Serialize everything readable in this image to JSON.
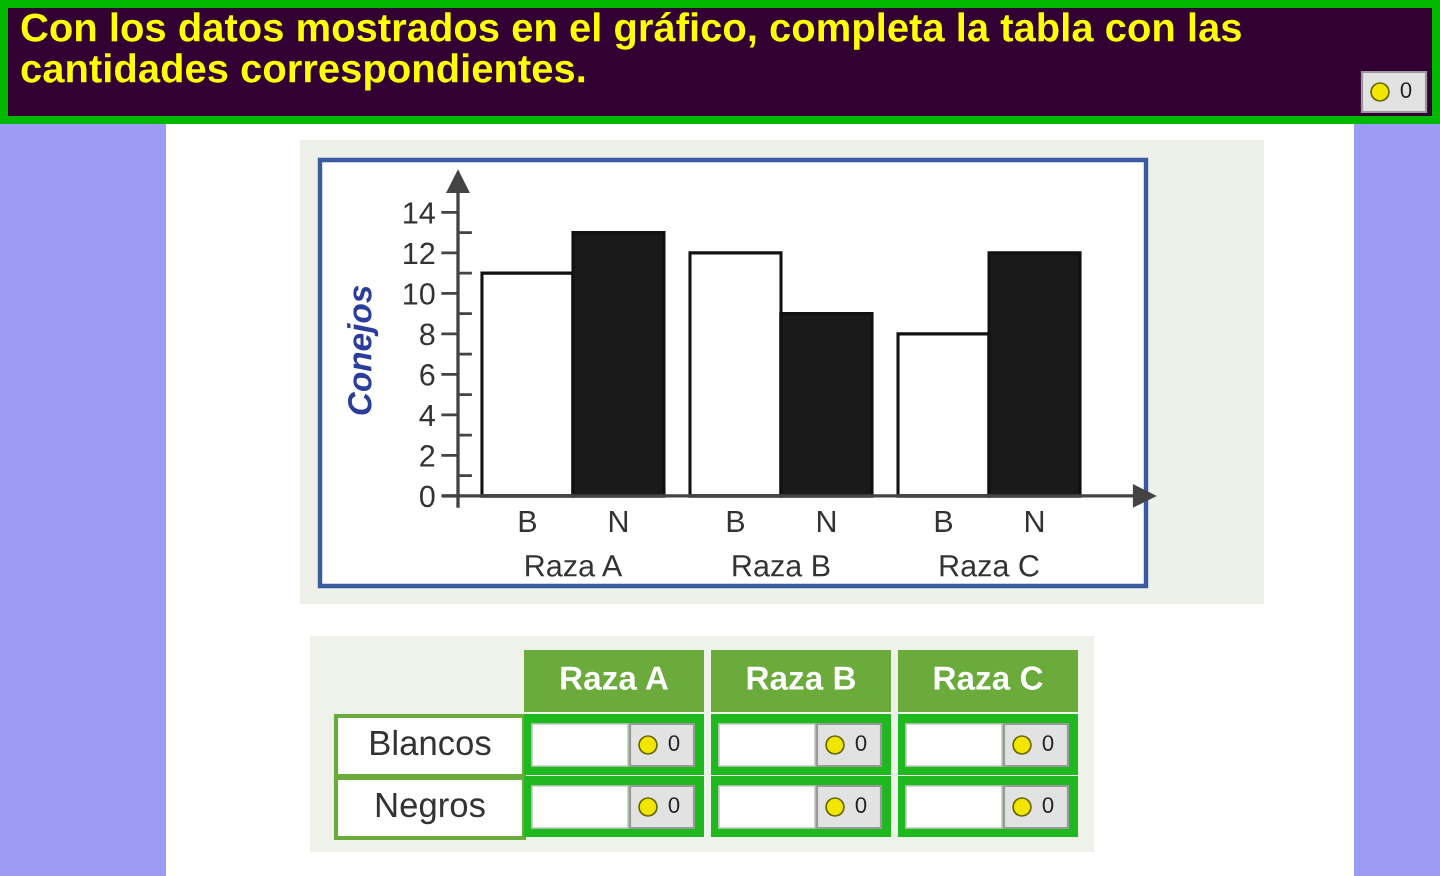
{
  "chart_data": [
    {
      "type": "bar",
      "title": "Con los datos mostrados en el gráfico, completa la tabla con las cantidades correspondientes.",
      "ylabel": "Conejos",
      "categories": [
        "Raza A",
        "Raza B",
        "Raza C"
      ],
      "series": [
        {
          "name": "B",
          "color": "#ffffff",
          "values": [
            11,
            12,
            8
          ]
        },
        {
          "name": "N",
          "color": "#1a1a1a",
          "values": [
            13,
            9,
            12
          ]
        }
      ],
      "ylim": [
        -0.5,
        15.5
      ],
      "yticks": [
        0,
        {
          "value": 1,
          "label": null
        },
        2,
        {
          "value": 3,
          "label": null
        },
        4,
        {
          "value": 5,
          "label": null
        },
        6,
        {
          "value": 7,
          "label": null
        },
        8,
        {
          "value": 9,
          "label": null
        },
        10,
        {
          "value": 11,
          "label": null
        },
        12,
        {
          "value": 13,
          "label": null
        },
        14
      ],
      "annotations": [
        "0"
      ]
    },
    {
      "type": "other",
      "categories": [
        "Raza A",
        "Raza B",
        "Raza C"
      ],
      "y_categories": [
        "Blancos",
        "Negros"
      ],
      "cell_labels": [
        [
          "0",
          "0",
          "0"
        ],
        [
          "0",
          "0",
          "0"
        ]
      ]
    }
  ]
}
